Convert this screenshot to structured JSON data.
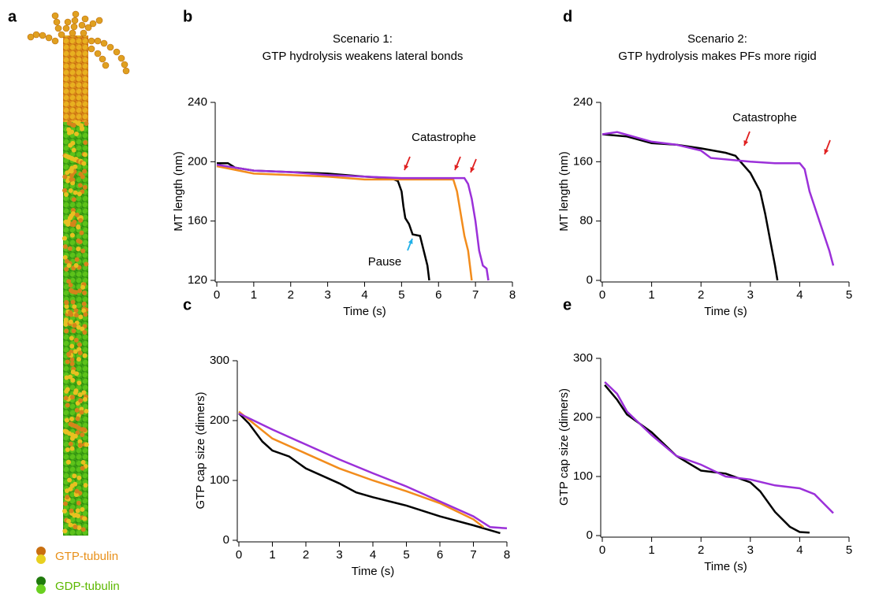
{
  "panel_a": {
    "label": "a",
    "legend": [
      "GTP-tubulin",
      "GDP-tubulin"
    ]
  },
  "chart_data": [
    {
      "type": "line",
      "panel": "b",
      "title": "Scenario 1:",
      "subtitle": "GTP hydrolysis weakens lateral bonds",
      "xlabel": "Time (s)",
      "ylabel": "MT length (nm)",
      "xlim": [
        0,
        8
      ],
      "xticks": [
        0,
        1,
        2,
        3,
        4,
        5,
        6,
        7,
        8
      ],
      "ylim": [
        120,
        240
      ],
      "yticks": [
        120,
        160,
        200,
        240
      ],
      "annotations": [
        "Catastrophe",
        "Pause"
      ],
      "series": [
        {
          "color": "#000000",
          "x": [
            0,
            0.3,
            0.5,
            1,
            2,
            3,
            4,
            4.7,
            4.9,
            5.0,
            5.05,
            5.1,
            5.2,
            5.3,
            5.5,
            5.6,
            5.7,
            5.75
          ],
          "values": [
            199,
            199,
            196,
            194,
            193,
            192,
            190,
            189,
            187,
            180,
            170,
            162,
            158,
            151,
            150,
            140,
            130,
            120
          ]
        },
        {
          "color": "#f28c1c",
          "x": [
            0,
            1,
            2,
            3,
            4,
            5,
            6,
            6.4,
            6.5,
            6.6,
            6.7,
            6.8,
            6.85,
            6.9
          ],
          "values": [
            197,
            192,
            191,
            190,
            188,
            188,
            188,
            188,
            180,
            165,
            150,
            140,
            130,
            120
          ]
        },
        {
          "color": "#9b30d9",
          "x": [
            0,
            1,
            2,
            3,
            4,
            5,
            6,
            6.7,
            6.8,
            6.9,
            7.0,
            7.1,
            7.2,
            7.3,
            7.35
          ],
          "values": [
            198,
            194,
            193,
            191,
            190,
            189,
            189,
            189,
            185,
            175,
            160,
            140,
            130,
            128,
            120
          ]
        }
      ]
    },
    {
      "type": "line",
      "panel": "c",
      "xlabel": "Time (s)",
      "ylabel": "GTP cap size (dimers)",
      "xlim": [
        0,
        8
      ],
      "xticks": [
        0,
        1,
        2,
        3,
        4,
        5,
        6,
        7,
        8
      ],
      "ylim": [
        0,
        300
      ],
      "yticks": [
        0,
        100,
        200,
        300
      ],
      "series": [
        {
          "color": "#000000",
          "x": [
            0,
            0.3,
            0.7,
            1,
            1.5,
            2,
            3,
            3.5,
            4,
            5,
            6,
            7,
            7.8
          ],
          "values": [
            212,
            195,
            165,
            150,
            140,
            120,
            95,
            80,
            72,
            58,
            40,
            25,
            12
          ]
        },
        {
          "color": "#f28c1c",
          "x": [
            0,
            1,
            2,
            3,
            4,
            5,
            6,
            7,
            7.3
          ],
          "values": [
            215,
            170,
            145,
            120,
            100,
            82,
            62,
            35,
            22
          ]
        },
        {
          "color": "#9b30d9",
          "x": [
            0,
            1,
            2,
            3,
            4,
            5,
            6,
            7,
            7.5,
            8
          ],
          "values": [
            212,
            185,
            160,
            135,
            112,
            90,
            65,
            40,
            22,
            20
          ]
        }
      ]
    },
    {
      "type": "line",
      "panel": "d",
      "title": "Scenario 2:",
      "subtitle": "GTP hydrolysis makes PFs more rigid",
      "xlabel": "Time (s)",
      "ylabel": "MT length (nm)",
      "xlim": [
        0,
        5
      ],
      "xticks": [
        0,
        1,
        2,
        3,
        4,
        5
      ],
      "ylim": [
        0,
        240
      ],
      "yticks": [
        0,
        80,
        160,
        240
      ],
      "annotations": [
        "Catastrophe"
      ],
      "series": [
        {
          "color": "#000000",
          "x": [
            0,
            0.5,
            1,
            1.5,
            2,
            2.5,
            2.7,
            2.8,
            3,
            3.2,
            3.3,
            3.4,
            3.5,
            3.55
          ],
          "values": [
            197,
            194,
            185,
            183,
            178,
            172,
            168,
            160,
            145,
            120,
            90,
            55,
            20,
            0
          ]
        },
        {
          "color": "#9b30d9",
          "x": [
            0,
            0.3,
            1,
            1.5,
            2,
            2.2,
            3,
            3.5,
            4.0,
            4.1,
            4.2,
            4.4,
            4.6,
            4.68
          ],
          "values": [
            197,
            200,
            187,
            183,
            175,
            165,
            160,
            158,
            158,
            150,
            120,
            80,
            40,
            20
          ]
        }
      ]
    },
    {
      "type": "line",
      "panel": "e",
      "xlabel": "Time (s)",
      "ylabel": "GTP cap size (dimers)",
      "xlim": [
        0,
        5
      ],
      "xticks": [
        0,
        1,
        2,
        3,
        4,
        5
      ],
      "ylim": [
        0,
        300
      ],
      "yticks": [
        0,
        100,
        200,
        300
      ],
      "series": [
        {
          "color": "#000000",
          "x": [
            0.05,
            0.3,
            0.5,
            1,
            1.5,
            2,
            2.5,
            3,
            3.2,
            3.5,
            3.8,
            4,
            4.2
          ],
          "values": [
            255,
            230,
            205,
            175,
            135,
            110,
            105,
            90,
            75,
            40,
            15,
            6,
            5
          ]
        },
        {
          "color": "#9b30d9",
          "x": [
            0.05,
            0.3,
            0.5,
            1,
            1.5,
            2,
            2.5,
            3,
            3.5,
            4,
            4.3,
            4.68
          ],
          "values": [
            260,
            240,
            210,
            170,
            135,
            120,
            100,
            95,
            85,
            80,
            70,
            38
          ]
        }
      ]
    }
  ]
}
